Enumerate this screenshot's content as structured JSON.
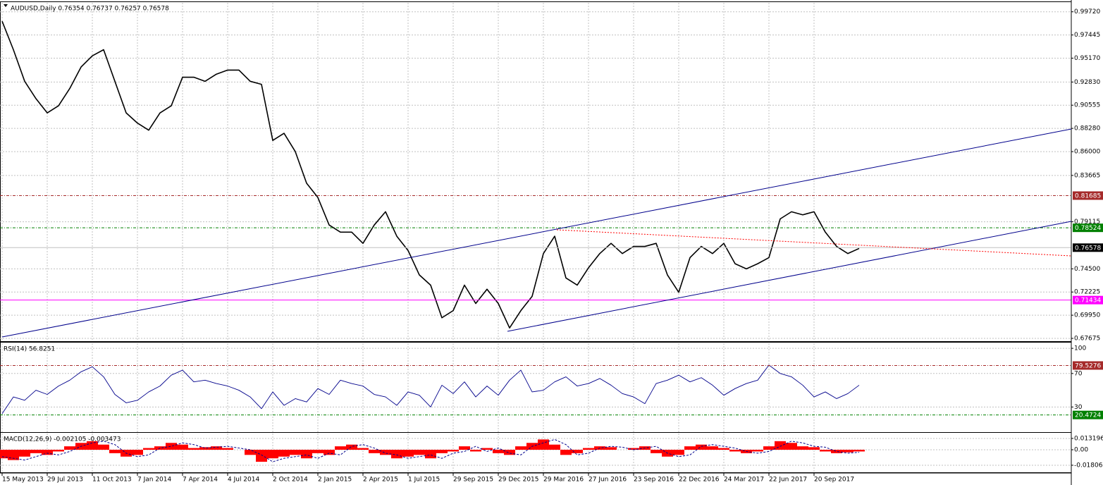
{
  "chart_data": [
    {
      "type": "line",
      "title": "AUDUSD,Daily  0.76354 0.76737 0.76257 0.76578",
      "color": "#000000",
      "grid": true,
      "categories": [
        "15 May 2013",
        null,
        null,
        null,
        "29 Jul 2013",
        null,
        null,
        null,
        "11 Oct 2013",
        null,
        null,
        null,
        "7 Jan 2014",
        null,
        null,
        null,
        "7 Apr 2014",
        null,
        null,
        null,
        "4 Jul 2014",
        null,
        null,
        null,
        "2 Oct 2014",
        null,
        null,
        null,
        "2 Jan 2015",
        null,
        null,
        null,
        "2 Apr 2015",
        null,
        null,
        null,
        "1 Jul 2015",
        null,
        null,
        null,
        "29 Sep 2015",
        null,
        null,
        null,
        "29 Dec 2015",
        null,
        null,
        null,
        "29 Mar 2016",
        null,
        null,
        null,
        "27 Jun 2016",
        null,
        null,
        null,
        "23 Sep 2016",
        null,
        null,
        null,
        "22 Dec 2016",
        null,
        null,
        null,
        "24 Mar 2017",
        null,
        null,
        null,
        "22 Jun 2017",
        null,
        null,
        null,
        "20 Sep 2017",
        null,
        null,
        null,
        null
      ],
      "values": [
        0.988,
        0.96,
        0.929,
        0.912,
        0.898,
        0.905,
        0.922,
        0.943,
        0.954,
        0.96,
        0.929,
        0.898,
        0.888,
        0.881,
        0.898,
        0.905,
        0.933,
        0.933,
        0.929,
        0.936,
        0.94,
        0.94,
        0.929,
        0.926,
        0.871,
        0.878,
        0.86,
        0.829,
        0.815,
        0.788,
        0.781,
        0.781,
        0.77,
        0.788,
        0.801,
        0.777,
        0.763,
        0.739,
        0.729,
        0.697,
        0.704,
        0.729,
        0.711,
        0.725,
        0.711,
        0.687,
        0.704,
        0.718,
        0.76,
        0.777,
        0.736,
        0.729,
        0.746,
        0.76,
        0.77,
        0.76,
        0.767,
        0.767,
        0.77,
        0.739,
        0.722,
        0.756,
        0.767,
        0.76,
        0.77,
        0.75,
        0.745,
        0.75,
        0.756,
        0.794,
        0.801,
        0.798,
        0.801,
        0.781,
        0.767,
        0.76,
        0.765
      ],
      "ylim": [
        0.674,
        1.006
      ],
      "yticks": [
        {
          "value": 0.9972,
          "label": "0.99720"
        },
        {
          "value": 0.97445,
          "label": "0.97445"
        },
        {
          "value": 0.9517,
          "label": "0.95170"
        },
        {
          "value": 0.9283,
          "label": "0.92830"
        },
        {
          "value": 0.90555,
          "label": "0.90555"
        },
        {
          "value": 0.8828,
          "label": "0.88280"
        },
        {
          "value": 0.86,
          "label": "0.86000"
        },
        {
          "value": 0.83665,
          "label": "0.83665"
        },
        {
          "value": 0.79115,
          "label": "0.79115"
        },
        {
          "value": 0.745,
          "label": "0.74500"
        },
        {
          "value": 0.72225,
          "label": "0.72225"
        },
        {
          "value": 0.6995,
          "label": "0.69950"
        },
        {
          "value": 0.67675,
          "label": "0.67675"
        }
      ],
      "levels": [
        {
          "value": 0.81685,
          "color": "#a52a2a",
          "style": "dashed"
        },
        {
          "value": 0.78524,
          "color": "#008000",
          "style": "dashed"
        },
        {
          "value": 0.76578,
          "color": "#000000",
          "line_color": "#c0c0c0",
          "style": "solid"
        },
        {
          "value": 0.71434,
          "color": "#ff00ff",
          "style": "solid"
        }
      ]
    },
    {
      "type": "line",
      "title": "RSI(14) 56.8251",
      "color": "#00008b",
      "grid": true,
      "values": [
        22,
        42,
        38,
        50,
        45,
        55,
        62,
        72,
        78,
        66,
        45,
        35,
        38,
        48,
        55,
        68,
        74,
        60,
        62,
        58,
        55,
        50,
        42,
        28,
        48,
        32,
        40,
        36,
        52,
        45,
        62,
        58,
        55,
        45,
        42,
        32,
        48,
        44,
        30,
        56,
        46,
        60,
        42,
        55,
        44,
        62,
        74,
        48,
        50,
        60,
        66,
        55,
        58,
        64,
        56,
        46,
        42,
        34,
        58,
        62,
        68,
        60,
        65,
        56,
        44,
        52,
        58,
        62,
        80,
        70,
        66,
        56,
        42,
        48,
        40,
        46,
        56
      ],
      "ylim": [
        0,
        106
      ],
      "yticks": [
        100,
        70,
        30
      ],
      "levels": [
        {
          "value": 79.5276,
          "color": "#a52a2a",
          "style": "dashed"
        },
        {
          "value": 20.4724,
          "color": "#008000",
          "style": "dashed"
        }
      ]
    },
    {
      "type": "bar",
      "title": "MACD(12,26,9) -0.002105 -0.003473",
      "color": "#ff0000",
      "signal_color": "#00008b",
      "grid": true,
      "values": [
        -0.01,
        -0.012,
        -0.008,
        -0.004,
        -0.006,
        -0.002,
        0.004,
        0.008,
        0.01,
        0.006,
        -0.004,
        -0.008,
        -0.006,
        0.002,
        0.004,
        0.008,
        0.006,
        0.002,
        0.003,
        0.004,
        0.002,
        0.0,
        -0.006,
        -0.014,
        -0.01,
        -0.008,
        -0.006,
        -0.01,
        -0.004,
        -0.006,
        0.004,
        0.006,
        0.002,
        -0.004,
        -0.006,
        -0.01,
        -0.008,
        -0.006,
        -0.01,
        -0.004,
        -0.002,
        0.004,
        -0.002,
        0.002,
        -0.004,
        -0.006,
        0.004,
        0.008,
        0.012,
        0.006,
        -0.006,
        -0.004,
        0.002,
        0.004,
        0.003,
        0.0,
        0.002,
        0.004,
        -0.004,
        -0.008,
        -0.006,
        0.004,
        0.006,
        0.004,
        0.002,
        -0.002,
        -0.004,
        -0.002,
        0.004,
        0.01,
        0.008,
        0.004,
        0.003,
        -0.002,
        -0.004,
        -0.003,
        -0.002
      ],
      "signal_values": [
        -0.008,
        -0.01,
        -0.012,
        -0.008,
        -0.004,
        -0.006,
        -0.002,
        0.004,
        0.008,
        0.01,
        0.006,
        -0.004,
        -0.008,
        -0.006,
        0.002,
        0.004,
        0.008,
        0.006,
        0.002,
        0.003,
        0.004,
        0.002,
        0.0,
        -0.006,
        -0.014,
        -0.01,
        -0.008,
        -0.006,
        -0.01,
        -0.004,
        -0.006,
        0.004,
        0.006,
        0.002,
        -0.004,
        -0.006,
        -0.01,
        -0.008,
        -0.006,
        -0.01,
        -0.004,
        -0.002,
        0.004,
        -0.002,
        0.002,
        -0.004,
        -0.006,
        0.004,
        0.008,
        0.012,
        0.006,
        -0.006,
        -0.004,
        0.002,
        0.004,
        0.003,
        0.0,
        0.002,
        0.004,
        -0.004,
        -0.008,
        -0.006,
        0.004,
        0.006,
        0.004,
        0.002,
        -0.002,
        -0.004,
        -0.002,
        0.004,
        0.01,
        0.008,
        0.004,
        0.003,
        -0.002,
        -0.004,
        -0.003
      ],
      "ylim": [
        -0.0263,
        0.0189
      ],
      "yticks": [
        0.013196,
        {
          "value": 0,
          "label": "0.00"
        },
        -0.018062
      ]
    }
  ]
}
